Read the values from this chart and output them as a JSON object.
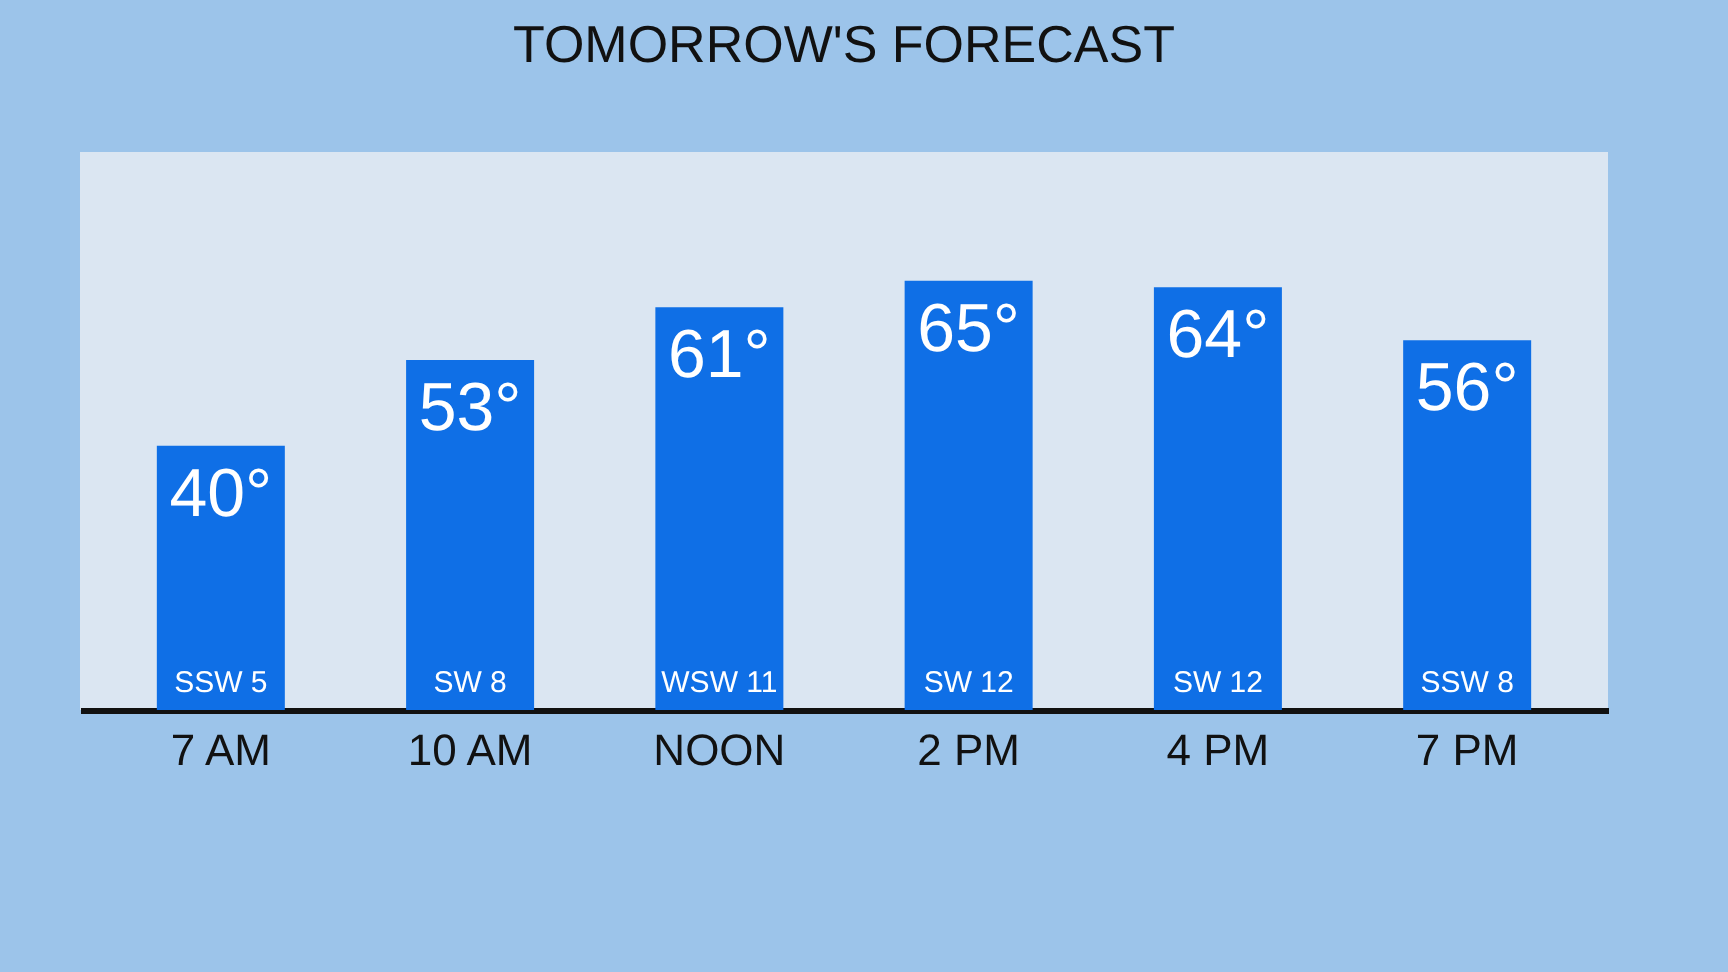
{
  "chart_data": {
    "type": "bar",
    "title": "TOMORROW'S FORECAST",
    "categories": [
      "7 AM",
      "10 AM",
      "NOON",
      "2 PM",
      "4 PM",
      "7 PM"
    ],
    "values": [
      40,
      53,
      61,
      65,
      64,
      56
    ],
    "value_labels": [
      "40°",
      "53°",
      "61°",
      "65°",
      "64°",
      "56°"
    ],
    "color": "#0f6fe6",
    "annotations": [
      "SSW 5",
      "SW 8",
      "WSW 11",
      "SW 12",
      "SW 12",
      "SSW 8"
    ],
    "grid": false
  }
}
